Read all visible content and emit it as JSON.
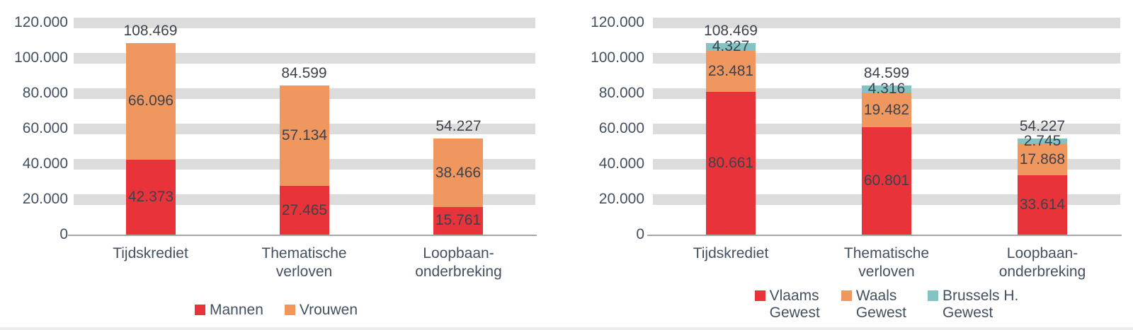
{
  "palette": {
    "background": "#ffffff",
    "grid_band": "#dcdcdc",
    "axis_line": "#a6a6a6",
    "axis_text": "#43505f",
    "data_label_text": "#3d434c",
    "bottom_edge": "#ececec",
    "red": "#e8333a",
    "orange": "#f0975f",
    "teal": "#83c3c4"
  },
  "chart_data": [
    {
      "name": "verloven-naar-geslacht",
      "type": "bar",
      "stacked": true,
      "grid": true,
      "legend_position": "bottom",
      "ylim": [
        0,
        120000
      ],
      "yticks": [
        {
          "value": 0,
          "label": "0"
        },
        {
          "value": 20000,
          "label": "20.000"
        },
        {
          "value": 40000,
          "label": "40.000"
        },
        {
          "value": 60000,
          "label": "60.000"
        },
        {
          "value": 80000,
          "label": "80.000"
        },
        {
          "value": 100000,
          "label": "100.000"
        },
        {
          "value": 120000,
          "label": "120.000"
        }
      ],
      "categories": [
        "Tijdskrediet",
        "Thematische\nverloven",
        "Loopbaan-\nonderbreking"
      ],
      "series": [
        {
          "name": "Mannen",
          "legend_label": "Mannen",
          "color": "#e8333a",
          "values": [
            42373,
            27465,
            15761
          ],
          "value_labels": [
            "42.373",
            "27.465",
            "15.761"
          ]
        },
        {
          "name": "Vrouwen",
          "legend_label": "Vrouwen",
          "color": "#f0975f",
          "values": [
            66096,
            57134,
            38466
          ],
          "value_labels": [
            "66.096",
            "57.134",
            "38.466"
          ]
        }
      ],
      "totals": [
        108469,
        84599,
        54227
      ],
      "total_labels": [
        "108.469",
        "84.599",
        "54.227"
      ]
    },
    {
      "name": "verloven-naar-gewest",
      "type": "bar",
      "stacked": true,
      "grid": true,
      "legend_position": "bottom",
      "ylim": [
        0,
        120000
      ],
      "yticks": [
        {
          "value": 0,
          "label": "0"
        },
        {
          "value": 20000,
          "label": "20.000"
        },
        {
          "value": 40000,
          "label": "40.000"
        },
        {
          "value": 60000,
          "label": "60.000"
        },
        {
          "value": 80000,
          "label": "80.000"
        },
        {
          "value": 100000,
          "label": "100.000"
        },
        {
          "value": 120000,
          "label": "120.000"
        }
      ],
      "categories": [
        "Tijdskrediet",
        "Thematische\nverloven",
        "Loopbaan-\nonderbreking"
      ],
      "series": [
        {
          "name": "Vlaams Gewest",
          "legend_label": "Vlaams\nGewest",
          "color": "#e8333a",
          "values": [
            80661,
            60801,
            33614
          ],
          "value_labels": [
            "80.661",
            "60.801",
            "33.614"
          ]
        },
        {
          "name": "Waals Gewest",
          "legend_label": "Waals\nGewest",
          "color": "#f0975f",
          "values": [
            23481,
            19482,
            17868
          ],
          "value_labels": [
            "23.481",
            "19.482",
            "17.868"
          ]
        },
        {
          "name": "Brussels H. Gewest",
          "legend_label": "Brussels H.\nGewest",
          "color": "#83c3c4",
          "values": [
            4327,
            4316,
            2745
          ],
          "value_labels": [
            "4.327",
            "4.316",
            "2.745"
          ]
        }
      ],
      "totals": [
        108469,
        84599,
        54227
      ],
      "total_labels": [
        "108.469",
        "84.599",
        "54.227"
      ]
    }
  ]
}
